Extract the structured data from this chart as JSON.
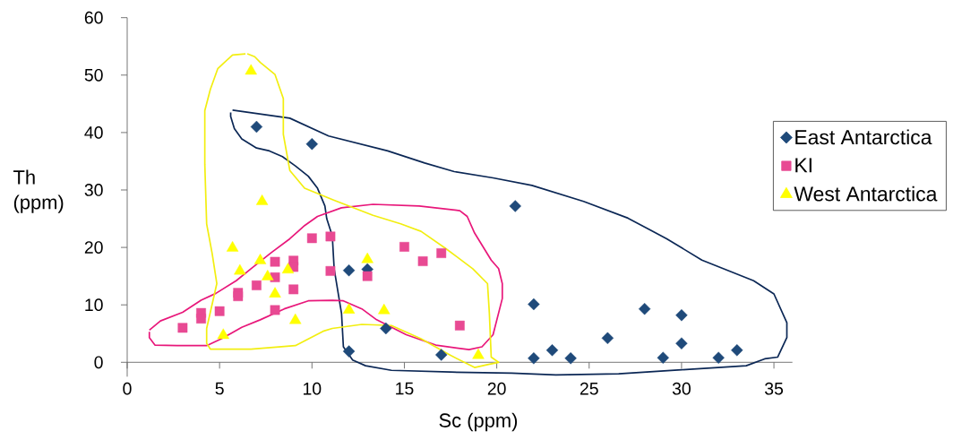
{
  "chart_data": {
    "type": "scatter",
    "xlabel": "Sc (ppm)",
    "ylabel": "Th (ppm)",
    "xlim": [
      0,
      36
    ],
    "ylim": [
      -2.5,
      60
    ],
    "xticks": [
      0,
      5,
      10,
      15,
      20,
      25,
      30,
      35
    ],
    "yticks": [
      0,
      10,
      20,
      30,
      40,
      50,
      60
    ],
    "legend": "right",
    "series": [
      {
        "name": "East Antarctica",
        "color": "#1f4a7a",
        "marker": "diamond",
        "x": [
          7,
          10,
          21,
          12,
          13,
          14,
          12,
          17,
          22,
          22,
          23,
          24,
          26,
          28,
          30,
          30,
          29,
          32,
          33
        ],
        "values": [
          41,
          38,
          27.2,
          16,
          16.2,
          5.9,
          1.9,
          1.3,
          10.1,
          0.7,
          2.1,
          0.7,
          4.2,
          9.3,
          8.2,
          3.3,
          0.8,
          0.8,
          2.1
        ]
      },
      {
        "name": "KI",
        "color": "#e84a93",
        "marker": "square",
        "x": [
          3,
          4,
          4,
          5,
          6,
          6,
          7,
          8,
          8,
          8,
          9,
          9,
          9,
          10,
          11,
          11,
          13,
          15,
          16,
          17,
          18
        ],
        "values": [
          6.0,
          8.6,
          7.6,
          8.9,
          12.1,
          11.5,
          13.4,
          17.5,
          14.8,
          9.1,
          17.7,
          16.6,
          12.7,
          21.6,
          21.9,
          15.9,
          15.0,
          20.1,
          17.6,
          19.0,
          6.4
        ]
      },
      {
        "name": "West Antarctica",
        "color": "#ffff00",
        "marker": "triangle",
        "x": [
          6.7,
          7.3,
          5.7,
          7.2,
          6.1,
          7.6,
          8.7,
          8.0,
          9.1,
          5.2,
          13.0,
          12.0,
          13.9,
          19.0
        ],
        "values": [
          50.7,
          28.0,
          19.9,
          17.7,
          15.9,
          14.9,
          16.1,
          11.9,
          7.3,
          4.7,
          17.9,
          9.1,
          9.0,
          1.2
        ]
      },
      {
        "type": "line",
        "color": "#0b2755",
        "x": [
          5.7,
          8.8,
          10.9,
          14.1,
          16.1,
          17.7,
          19.8,
          21.9,
          24.7,
          27.1,
          29.2,
          31.1,
          33.9,
          35.0,
          35.7,
          35.7,
          35.2,
          34.5,
          33.5,
          30.0,
          26.6,
          23.2,
          20.8,
          17.5,
          14.3,
          12.9,
          12.2,
          11.7,
          11.6,
          11.2,
          11.1,
          10.8,
          10.7,
          10.3,
          9.8,
          9.1,
          8.4,
          7.7,
          7.0,
          6.2,
          5.8,
          5.6,
          5.6
        ],
        "values": [
          43.9,
          42.5,
          39.4,
          36.8,
          34.7,
          33.2,
          32.1,
          30.8,
          28.0,
          25.1,
          21.5,
          17.8,
          14.2,
          11.9,
          6.9,
          4.3,
          0.9,
          0.6,
          -0.6,
          -1.3,
          -2.0,
          -2.2,
          -1.9,
          -1.7,
          -1.4,
          -0.6,
          0.4,
          2.7,
          8.5,
          16.3,
          22.0,
          25.0,
          27.2,
          30.3,
          32.4,
          34.2,
          35.8,
          36.8,
          37.3,
          38.9,
          40.7,
          42.8,
          43.5
        ]
      },
      {
        "type": "line",
        "color": "#e8177a",
        "x": [
          1.2,
          1.8,
          3.0,
          4.0,
          4.8,
          5.9,
          6.7,
          7.8,
          8.8,
          9.6,
          10.3,
          11.6,
          13.3,
          15.8,
          18.0,
          18.4,
          18.8,
          19.7,
          20.1,
          20.3,
          20.3,
          19.8,
          19.2,
          18.5,
          16.7,
          15.1,
          13.5,
          12.7,
          11.7,
          11.1,
          9.8,
          8.5,
          7.2,
          6.2,
          5.1,
          4.3,
          2.7,
          1.5,
          1.2,
          1.2
        ],
        "values": [
          5.6,
          7.2,
          8.7,
          10.8,
          12.0,
          14.2,
          16.3,
          19.1,
          21.5,
          23.8,
          25.4,
          26.9,
          27.5,
          27.2,
          26.4,
          25.4,
          22.5,
          17.8,
          16.3,
          13.7,
          11.1,
          4.8,
          2.7,
          2.2,
          3.0,
          4.8,
          7.4,
          9.3,
          10.7,
          10.8,
          10.7,
          9.3,
          7.4,
          6.1,
          4.1,
          2.9,
          2.9,
          3.0,
          4.3,
          5.3
        ]
      },
      {
        "type": "line",
        "color": "#f2ee10",
        "x": [
          6.5,
          6.9,
          7.2,
          8.0,
          8.45,
          8.45,
          8.8,
          9.6,
          11.2,
          13.3,
          14.8,
          15.9,
          17.2,
          18.7,
          19.5,
          19.6,
          19.7,
          20.1,
          19.5,
          18.8,
          17.5,
          15.9,
          14.3,
          12.7,
          11.1,
          10.6,
          9.1,
          6.7,
          4.5,
          4.3,
          4.3,
          4.85,
          4.6,
          4.3,
          4.2,
          4.2,
          4.5,
          4.9,
          5.7,
          6.4
        ],
        "values": [
          53.7,
          53.2,
          52.2,
          50.1,
          45.9,
          39.7,
          33.4,
          30.3,
          28.2,
          25.6,
          24.1,
          22.8,
          19.9,
          16.3,
          13.7,
          8.5,
          0.9,
          0.0,
          -0.4,
          -0.9,
          1.2,
          4.1,
          6.4,
          6.6,
          5.9,
          5.4,
          2.9,
          2.3,
          2.3,
          3.3,
          5.9,
          13.7,
          18.9,
          24.1,
          34.5,
          43.8,
          47.5,
          51.1,
          53.5,
          53.7
        ]
      }
    ]
  }
}
